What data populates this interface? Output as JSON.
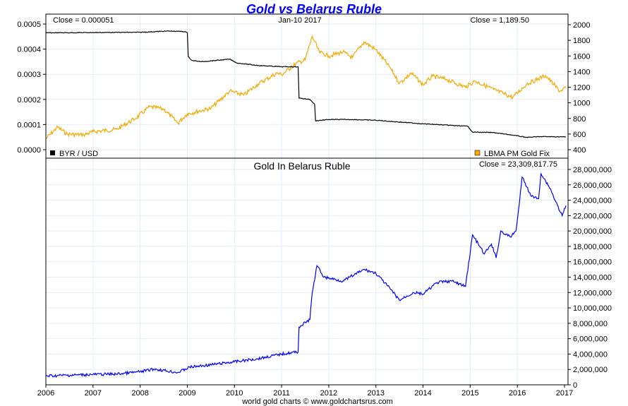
{
  "chart_data": [
    {
      "type": "line",
      "title": "Gold vs Belarus Ruble",
      "date_label": "Jan-10  2017",
      "close_left": "Close = 0.000051",
      "close_right": "Close = 1,189.50",
      "x_ticks": [
        "2006",
        "2007",
        "2008",
        "2009",
        "2010",
        "2011",
        "2012",
        "2013",
        "2014",
        "2015",
        "2016",
        "2017"
      ],
      "xlim": [
        2006,
        2017.05
      ],
      "y_left": {
        "ylim": [
          0,
          0.00052
        ],
        "ticks": [
          "0.0000",
          "0.0001",
          "0.0002",
          "0.0003",
          "0.0004",
          "0.0005"
        ]
      },
      "y_right": {
        "ylim": [
          350,
          2060
        ],
        "ticks": [
          "400",
          "600",
          "800",
          "1000",
          "1200",
          "1400",
          "1600",
          "1800",
          "2000"
        ]
      },
      "legend": [
        {
          "label": "BYR / USD",
          "color": "#000000",
          "placement": "bottom-left"
        },
        {
          "label": "LBMA PM Gold Fix",
          "color": "#f5a800",
          "placement": "bottom-right"
        }
      ],
      "series": [
        {
          "name": "BYR / USD",
          "axis": "left",
          "color": "#000000",
          "points": [
            [
              2006,
              0.000465
            ],
            [
              2007,
              0.000466
            ],
            [
              2008,
              0.000467
            ],
            [
              2008.6,
              0.000472
            ],
            [
              2008.95,
              0.00047
            ],
            [
              2009,
              0.000465
            ],
            [
              2009.02,
              0.00037
            ],
            [
              2009.1,
              0.000355
            ],
            [
              2009.3,
              0.00035
            ],
            [
              2009.6,
              0.000355
            ],
            [
              2009.9,
              0.00036
            ],
            [
              2010.05,
              0.000345
            ],
            [
              2010.5,
              0.000335
            ],
            [
              2011,
              0.00033
            ],
            [
              2011.35,
              0.00033
            ],
            [
              2011.37,
              0.000205
            ],
            [
              2011.6,
              0.0002
            ],
            [
              2011.7,
              0.00018
            ],
            [
              2011.72,
              0.000115
            ],
            [
              2012,
              0.00012
            ],
            [
              2012.5,
              0.00012
            ],
            [
              2013,
              0.000117
            ],
            [
              2014,
              0.000103
            ],
            [
              2014.95,
              9.3e-05
            ],
            [
              2015.05,
              7e-05
            ],
            [
              2015.5,
              6.8e-05
            ],
            [
              2015.9,
              5.8e-05
            ],
            [
              2016.2,
              4.9e-05
            ],
            [
              2016.5,
              5.2e-05
            ],
            [
              2017.03,
              5.1e-05
            ]
          ]
        },
        {
          "name": "LBMA PM Gold Fix",
          "axis": "right",
          "color": "#f5a800",
          "points": [
            [
              2006,
              540
            ],
            [
              2006.25,
              690
            ],
            [
              2006.45,
              600
            ],
            [
              2006.8,
              590
            ],
            [
              2007,
              630
            ],
            [
              2007.5,
              660
            ],
            [
              2007.9,
              800
            ],
            [
              2008.2,
              950
            ],
            [
              2008.5,
              920
            ],
            [
              2008.8,
              740
            ],
            [
              2009,
              860
            ],
            [
              2009.5,
              930
            ],
            [
              2009.9,
              1150
            ],
            [
              2010.2,
              1100
            ],
            [
              2010.5,
              1240
            ],
            [
              2010.9,
              1380
            ],
            [
              2011,
              1360
            ],
            [
              2011.3,
              1500
            ],
            [
              2011.5,
              1550
            ],
            [
              2011.65,
              1850
            ],
            [
              2011.8,
              1650
            ],
            [
              2012,
              1600
            ],
            [
              2012.3,
              1650
            ],
            [
              2012.5,
              1580
            ],
            [
              2012.75,
              1780
            ],
            [
              2013,
              1680
            ],
            [
              2013.3,
              1450
            ],
            [
              2013.5,
              1250
            ],
            [
              2013.75,
              1380
            ],
            [
              2014,
              1230
            ],
            [
              2014.2,
              1340
            ],
            [
              2014.5,
              1300
            ],
            [
              2014.9,
              1200
            ],
            [
              2015.1,
              1280
            ],
            [
              2015.5,
              1170
            ],
            [
              2015.9,
              1070
            ],
            [
              2016.2,
              1240
            ],
            [
              2016.6,
              1350
            ],
            [
              2016.9,
              1150
            ],
            [
              2017.03,
              1190
            ]
          ]
        }
      ]
    },
    {
      "type": "line",
      "title": "Gold In Belarus Ruble",
      "close": "Close = 23,309,817.75",
      "ylim": [
        0,
        28000000
      ],
      "y_ticks": [
        "0",
        "2,000,000",
        "4,000,000",
        "6,000,000",
        "8,000,000",
        "10,000,000",
        "12,000,000",
        "14,000,000",
        "16,000,000",
        "18,000,000",
        "20,000,000",
        "22,000,000",
        "24,000,000",
        "26,000,000",
        "28,000,000"
      ],
      "series": [
        {
          "name": "Gold In Belarus Ruble",
          "color": "#0000ff",
          "points": [
            [
              2006,
              1150000
            ],
            [
              2007,
              1350000
            ],
            [
              2007.5,
              1400000
            ],
            [
              2008,
              1700000
            ],
            [
              2008.3,
              2050000
            ],
            [
              2008.8,
              1600000
            ],
            [
              2009.05,
              2300000
            ],
            [
              2009.5,
              2600000
            ],
            [
              2010,
              3000000
            ],
            [
              2010.5,
              3400000
            ],
            [
              2011,
              4000000
            ],
            [
              2011.35,
              4300000
            ],
            [
              2011.37,
              7500000
            ],
            [
              2011.6,
              8500000
            ],
            [
              2011.65,
              12000000
            ],
            [
              2011.75,
              15500000
            ],
            [
              2011.9,
              14000000
            ],
            [
              2012.3,
              13500000
            ],
            [
              2012.75,
              15000000
            ],
            [
              2013,
              14500000
            ],
            [
              2013.3,
              12500000
            ],
            [
              2013.5,
              11000000
            ],
            [
              2013.8,
              12000000
            ],
            [
              2014,
              11800000
            ],
            [
              2014.3,
              13300000
            ],
            [
              2014.6,
              13500000
            ],
            [
              2014.9,
              12800000
            ],
            [
              2015.05,
              19500000
            ],
            [
              2015.3,
              17000000
            ],
            [
              2015.45,
              18300000
            ],
            [
              2015.55,
              16500000
            ],
            [
              2015.65,
              20000000
            ],
            [
              2015.85,
              19200000
            ],
            [
              2015.97,
              20000000
            ],
            [
              2016.05,
              24000000
            ],
            [
              2016.1,
              27000000
            ],
            [
              2016.3,
              24500000
            ],
            [
              2016.45,
              24200000
            ],
            [
              2016.5,
              27500000
            ],
            [
              2016.7,
              25500000
            ],
            [
              2016.8,
              24000000
            ],
            [
              2016.95,
              22000000
            ],
            [
              2017.03,
              23300000
            ]
          ]
        }
      ]
    }
  ],
  "footer": "world gold charts © www.goldchartsrus.com"
}
